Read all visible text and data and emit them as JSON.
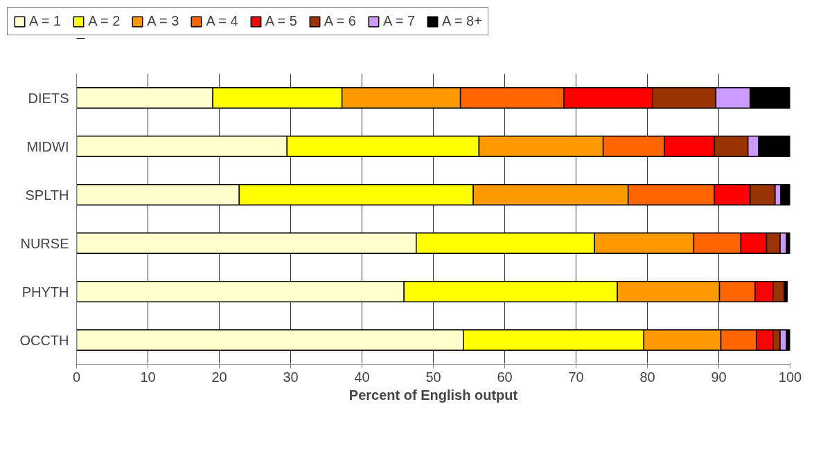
{
  "chart_data": {
    "type": "bar",
    "orientation": "horizontal",
    "stacked": true,
    "xlabel": "Percent of English output",
    "categories": [
      "DIETS",
      "MIDWI",
      "SPLTH",
      "NURSE",
      "PHYTH",
      "OCCTH"
    ],
    "series": [
      {
        "name": "A = 1",
        "color": "#ffffcc",
        "values": [
          19.1,
          29.5,
          22.8,
          47.6,
          45.9,
          54.2
        ]
      },
      {
        "name": "A = 2",
        "color": "#ffff00",
        "values": [
          18.1,
          26.9,
          32.8,
          25.0,
          29.9,
          25.3
        ]
      },
      {
        "name": "A = 3",
        "color": "#ff9900",
        "values": [
          16.6,
          17.4,
          21.7,
          13.9,
          14.3,
          10.8
        ]
      },
      {
        "name": "A = 4",
        "color": "#ff6600",
        "values": [
          14.5,
          8.6,
          12.1,
          6.6,
          5.0,
          5.0
        ]
      },
      {
        "name": "A = 5",
        "color": "#ff0000",
        "values": [
          12.4,
          7.0,
          5.0,
          3.6,
          2.5,
          2.3
        ]
      },
      {
        "name": "A = 6",
        "color": "#993300",
        "values": [
          8.9,
          4.7,
          3.5,
          1.9,
          1.6,
          1.0
        ]
      },
      {
        "name": "A = 7",
        "color": "#cc99ff",
        "values": [
          4.8,
          1.5,
          0.8,
          0.9,
          null,
          0.9
        ]
      },
      {
        "name": "A = 8+",
        "color": "#000000",
        "values": [
          5.6,
          4.4,
          1.3,
          0.5,
          0.4,
          0.5
        ]
      }
    ],
    "xlim": [
      0,
      100
    ],
    "xticks": [
      0,
      10,
      20,
      30,
      40,
      50,
      60,
      70,
      80,
      90,
      100
    ],
    "grid": "x",
    "legend": "top left"
  }
}
